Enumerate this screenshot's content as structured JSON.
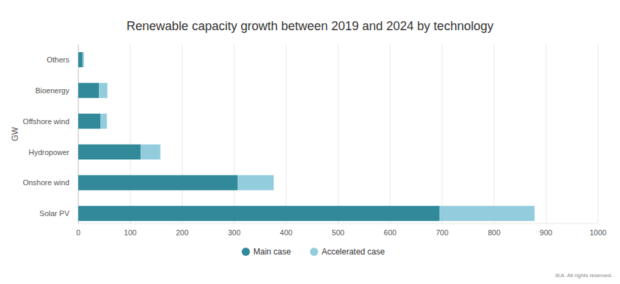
{
  "chart_data": {
    "type": "bar",
    "orientation": "horizontal",
    "stacked": true,
    "title": "Renewable capacity growth between 2019 and 2024 by technology",
    "y_label": "GW",
    "source": "IEA. All rights reserved.",
    "categories": [
      "Others",
      "Bioenergy",
      "Offshore wind",
      "Hydropower",
      "Onshore wind",
      "Solar PV"
    ],
    "series": [
      {
        "name": "Main case",
        "color": "#31899a",
        "values": [
          8,
          40,
          43,
          120,
          307,
          695
        ]
      },
      {
        "name": "Accelerated case",
        "color": "#93cddd",
        "values": [
          3,
          16,
          12,
          38,
          69,
          183
        ]
      }
    ],
    "xlim": [
      0,
      1000
    ],
    "xticks": [
      0,
      100,
      200,
      300,
      400,
      500,
      600,
      700,
      800,
      900,
      1000
    ],
    "grid": true,
    "legend": "bottom"
  }
}
